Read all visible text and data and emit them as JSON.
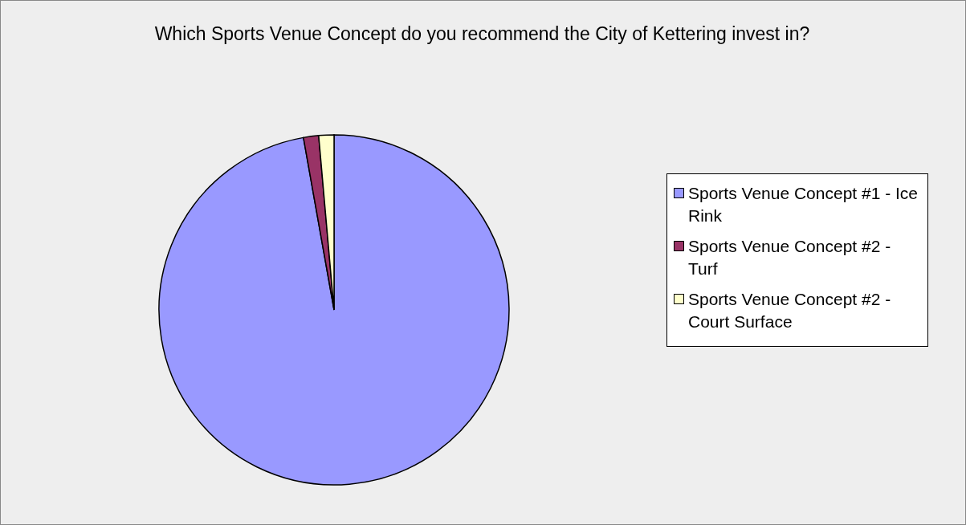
{
  "chart_data": {
    "type": "pie",
    "title": "Which Sports Venue Concept do you recommend the City of Kettering invest in?",
    "categories": [
      "Sports Venue Concept #1 - Ice Rink",
      "Sports Venue Concept #2 - Turf",
      "Sports Venue Concept #2 - Court Surface"
    ],
    "values": [
      97.2,
      1.4,
      1.4
    ],
    "colors": [
      "#9999ff",
      "#993366",
      "#ffffcc"
    ],
    "legend": "right"
  }
}
